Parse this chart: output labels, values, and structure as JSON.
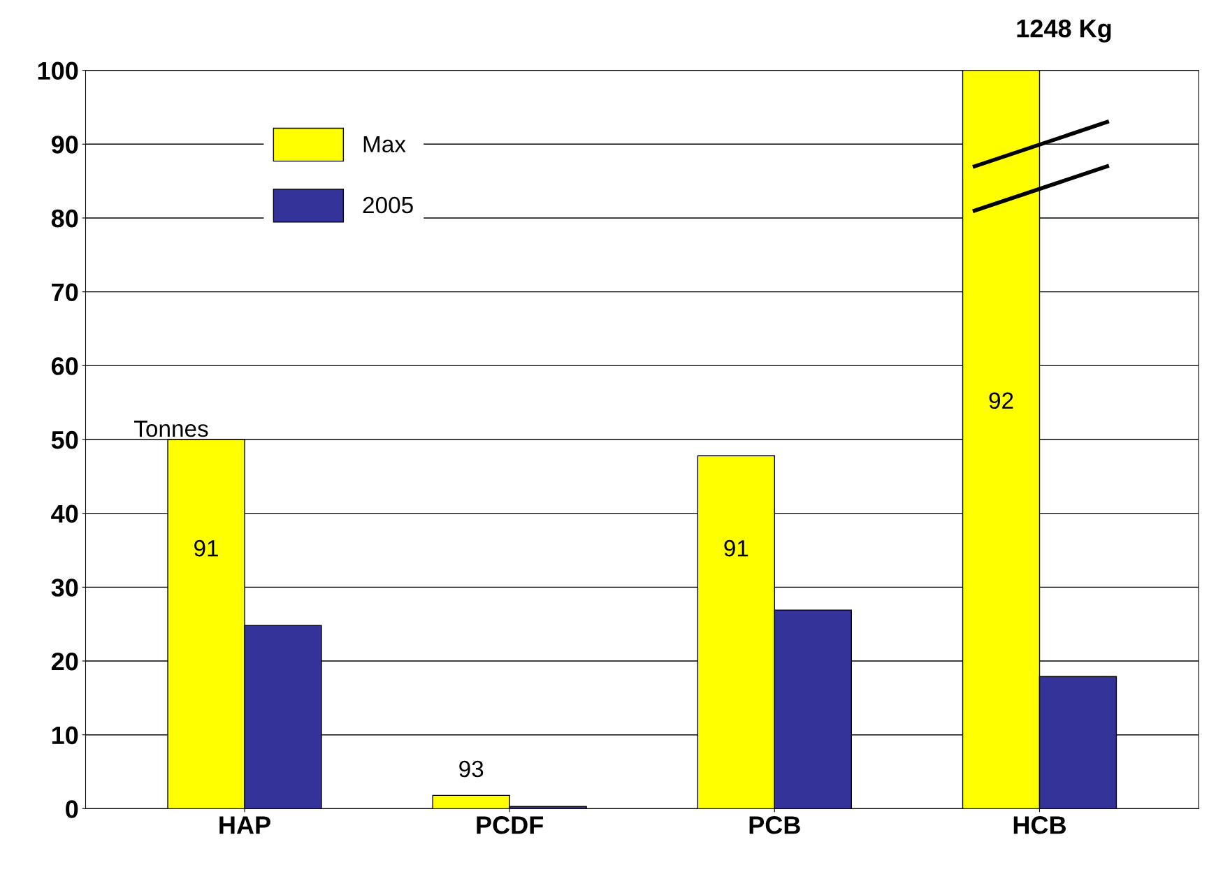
{
  "chart_data": {
    "type": "bar",
    "categories": [
      "HAP",
      "PCDF",
      "PCB",
      "HCB"
    ],
    "series": [
      {
        "name": "Max",
        "color": "#ffff00",
        "values": [
          50,
          1.8,
          47.8,
          100
        ]
      },
      {
        "name": "2005",
        "color": "#333399",
        "values": [
          24.8,
          0.3,
          26.9,
          17.9
        ]
      }
    ],
    "ylim": [
      0,
      100
    ],
    "yticks": [
      0,
      10,
      20,
      30,
      40,
      50,
      60,
      70,
      80,
      90,
      100
    ],
    "grid": "y",
    "legend": "top left",
    "annotations": [
      {
        "text": "91",
        "x": "HAP",
        "y": 35
      },
      {
        "text": "93",
        "x": "PCDF",
        "y": 1.8
      },
      {
        "text": "91",
        "x": "PCB",
        "y": 35
      },
      {
        "text": "92",
        "x": "HCB",
        "y": 55
      },
      "Tonnes",
      "1248 Kg"
    ]
  }
}
